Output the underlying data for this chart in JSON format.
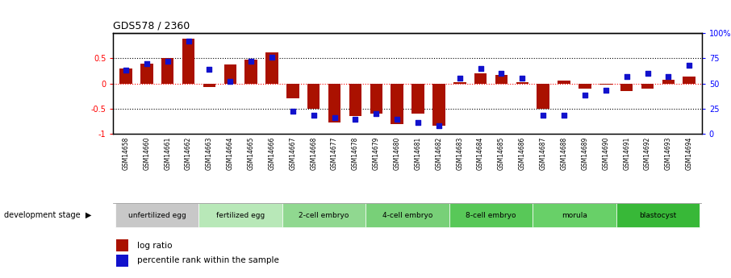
{
  "title": "GDS578 / 2360",
  "samples": [
    "GSM14658",
    "GSM14660",
    "GSM14661",
    "GSM14662",
    "GSM14663",
    "GSM14664",
    "GSM14665",
    "GSM14666",
    "GSM14667",
    "GSM14668",
    "GSM14677",
    "GSM14678",
    "GSM14679",
    "GSM14680",
    "GSM14681",
    "GSM14682",
    "GSM14683",
    "GSM14684",
    "GSM14685",
    "GSM14686",
    "GSM14687",
    "GSM14688",
    "GSM14689",
    "GSM14690",
    "GSM14691",
    "GSM14692",
    "GSM14693",
    "GSM14694"
  ],
  "log_ratio": [
    0.3,
    0.4,
    0.5,
    0.9,
    -0.07,
    0.38,
    0.47,
    0.62,
    -0.3,
    -0.5,
    -0.78,
    -0.65,
    -0.6,
    -0.82,
    -0.6,
    -0.85,
    0.02,
    0.2,
    0.17,
    0.02,
    -0.5,
    0.05,
    -0.1,
    -0.03,
    -0.15,
    -0.1,
    0.08,
    0.13
  ],
  "percentile": [
    63,
    70,
    72,
    92,
    64,
    52,
    72,
    76,
    22,
    18,
    16,
    14,
    20,
    14,
    11,
    8,
    55,
    65,
    60,
    55,
    18,
    18,
    38,
    43,
    57,
    60,
    57,
    68
  ],
  "stages": [
    {
      "label": "unfertilized egg",
      "start": 0,
      "end": 4,
      "color": "#c8c8c8"
    },
    {
      "label": "fertilized egg",
      "start": 4,
      "end": 8,
      "color": "#b8e8b8"
    },
    {
      "label": "2-cell embryo",
      "start": 8,
      "end": 12,
      "color": "#90d890"
    },
    {
      "label": "4-cell embryo",
      "start": 12,
      "end": 16,
      "color": "#78d078"
    },
    {
      "label": "8-cell embryo",
      "start": 16,
      "end": 20,
      "color": "#58c858"
    },
    {
      "label": "morula",
      "start": 20,
      "end": 24,
      "color": "#68d068"
    },
    {
      "label": "blastocyst",
      "start": 24,
      "end": 28,
      "color": "#38b838"
    }
  ],
  "bar_color": "#aa1100",
  "dot_color": "#1111cc",
  "ylim_left": [
    -1.0,
    1.0
  ],
  "left_yticks": [
    -1.0,
    -0.5,
    0.0,
    0.5
  ],
  "left_yticklabels": [
    "-1",
    "-0.5",
    "0",
    "0.5"
  ],
  "right_yticks_pct": [
    0,
    25,
    50,
    75,
    100
  ],
  "right_yticklabels": [
    "0",
    "25",
    "50",
    "75",
    "100%"
  ],
  "legend_log_ratio": "log ratio",
  "legend_percentile": "percentile rank within the sample",
  "dev_stage_label": "development stage"
}
